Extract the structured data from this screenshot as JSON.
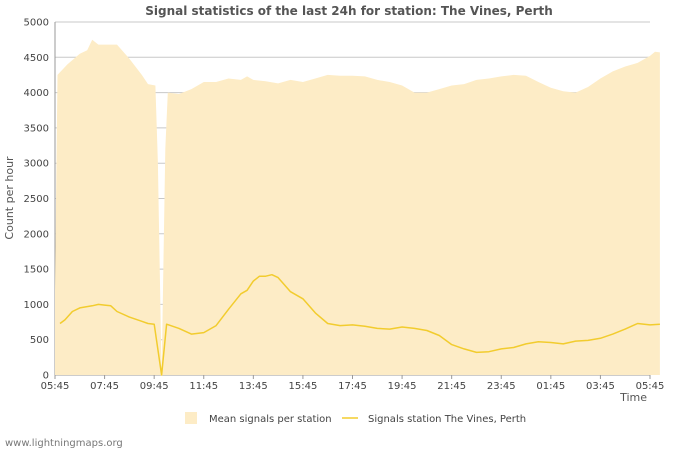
{
  "chart_data": {
    "type": "area",
    "title": "Signal statistics of the last 24h for station: The Vines, Perth",
    "xlabel": "Time",
    "ylabel": "Count per hour",
    "ylim": [
      0,
      5000
    ],
    "yticks": [
      0,
      500,
      1000,
      1500,
      2000,
      2500,
      3000,
      3500,
      4000,
      4500,
      5000
    ],
    "xticks": [
      "05:45",
      "07:45",
      "09:45",
      "11:45",
      "13:45",
      "15:45",
      "17:45",
      "19:45",
      "21:45",
      "23:45",
      "01:45",
      "03:45",
      "05:45"
    ],
    "grid": true,
    "legend_position": "bottom",
    "series": [
      {
        "name": "Mean signals per station",
        "style": "filled-area",
        "color": "#fdecc6",
        "points": [
          [
            0.0,
            1200
          ],
          [
            0.1,
            4250
          ],
          [
            0.5,
            4400
          ],
          [
            1.0,
            4550
          ],
          [
            1.3,
            4600
          ],
          [
            1.5,
            4750
          ],
          [
            1.75,
            4680
          ],
          [
            2.5,
            4680
          ],
          [
            3.0,
            4480
          ],
          [
            3.5,
            4250
          ],
          [
            3.75,
            4120
          ],
          [
            4.05,
            4100
          ],
          [
            4.15,
            3000
          ],
          [
            4.3,
            0
          ],
          [
            4.45,
            3200
          ],
          [
            4.55,
            4000
          ],
          [
            5.0,
            3980
          ],
          [
            5.5,
            4050
          ],
          [
            6.0,
            4150
          ],
          [
            6.5,
            4150
          ],
          [
            7.0,
            4200
          ],
          [
            7.5,
            4180
          ],
          [
            7.75,
            4230
          ],
          [
            8.0,
            4180
          ],
          [
            8.5,
            4160
          ],
          [
            9.0,
            4130
          ],
          [
            9.5,
            4180
          ],
          [
            10.0,
            4150
          ],
          [
            10.5,
            4200
          ],
          [
            11.0,
            4250
          ],
          [
            11.5,
            4240
          ],
          [
            12.0,
            4240
          ],
          [
            12.5,
            4230
          ],
          [
            13.0,
            4180
          ],
          [
            13.5,
            4150
          ],
          [
            14.0,
            4100
          ],
          [
            14.5,
            4000
          ],
          [
            15.0,
            4000
          ],
          [
            15.5,
            4050
          ],
          [
            16.0,
            4100
          ],
          [
            16.5,
            4120
          ],
          [
            17.0,
            4180
          ],
          [
            17.5,
            4200
          ],
          [
            18.0,
            4230
          ],
          [
            18.5,
            4250
          ],
          [
            19.0,
            4240
          ],
          [
            19.5,
            4150
          ],
          [
            20.0,
            4070
          ],
          [
            20.5,
            4020
          ],
          [
            21.0,
            4000
          ],
          [
            21.5,
            4080
          ],
          [
            22.0,
            4200
          ],
          [
            22.5,
            4300
          ],
          [
            23.0,
            4370
          ],
          [
            23.5,
            4420
          ],
          [
            24.0,
            4520
          ],
          [
            24.2,
            4580
          ],
          [
            24.4,
            4570
          ]
        ]
      },
      {
        "name": "Signals station The Vines, Perth",
        "style": "line",
        "color": "#f2cc2e",
        "points": [
          [
            0.2,
            730
          ],
          [
            0.4,
            780
          ],
          [
            0.7,
            900
          ],
          [
            1.0,
            950
          ],
          [
            1.5,
            980
          ],
          [
            1.75,
            1000
          ],
          [
            2.0,
            990
          ],
          [
            2.25,
            980
          ],
          [
            2.5,
            900
          ],
          [
            3.0,
            820
          ],
          [
            3.5,
            760
          ],
          [
            3.75,
            730
          ],
          [
            4.0,
            720
          ],
          [
            4.3,
            0
          ],
          [
            4.5,
            720
          ],
          [
            5.0,
            660
          ],
          [
            5.5,
            580
          ],
          [
            6.0,
            600
          ],
          [
            6.5,
            700
          ],
          [
            7.0,
            930
          ],
          [
            7.5,
            1150
          ],
          [
            7.75,
            1200
          ],
          [
            8.0,
            1330
          ],
          [
            8.25,
            1400
          ],
          [
            8.5,
            1400
          ],
          [
            8.75,
            1420
          ],
          [
            9.0,
            1380
          ],
          [
            9.5,
            1180
          ],
          [
            10.0,
            1080
          ],
          [
            10.5,
            880
          ],
          [
            11.0,
            730
          ],
          [
            11.5,
            700
          ],
          [
            12.0,
            710
          ],
          [
            12.5,
            690
          ],
          [
            13.0,
            660
          ],
          [
            13.5,
            650
          ],
          [
            14.0,
            680
          ],
          [
            14.5,
            660
          ],
          [
            15.0,
            630
          ],
          [
            15.5,
            560
          ],
          [
            16.0,
            430
          ],
          [
            16.5,
            370
          ],
          [
            17.0,
            320
          ],
          [
            17.5,
            330
          ],
          [
            18.0,
            370
          ],
          [
            18.5,
            390
          ],
          [
            19.0,
            440
          ],
          [
            19.5,
            470
          ],
          [
            20.0,
            460
          ],
          [
            20.5,
            440
          ],
          [
            21.0,
            480
          ],
          [
            21.5,
            490
          ],
          [
            22.0,
            520
          ],
          [
            22.5,
            580
          ],
          [
            23.0,
            650
          ],
          [
            23.5,
            730
          ],
          [
            24.0,
            710
          ],
          [
            24.4,
            720
          ]
        ]
      }
    ],
    "source": "www.lightningmaps.org"
  }
}
